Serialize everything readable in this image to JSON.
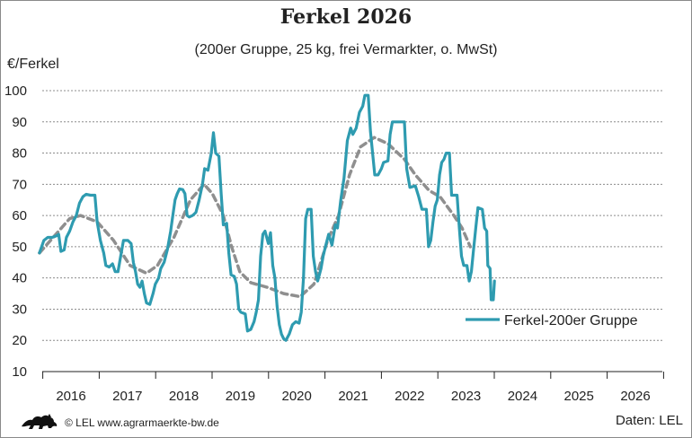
{
  "chart_data": {
    "type": "line",
    "title": "Ferkel 2026",
    "subtitle": "(200er Gruppe, 25 kg, frei Vermarkter, o. MwSt)",
    "ylabel": "€/Ferkel",
    "ylim": [
      10,
      100
    ],
    "yticks": [
      10,
      20,
      30,
      40,
      50,
      60,
      70,
      80,
      90,
      100
    ],
    "xticks": [
      "2016",
      "2017",
      "2018",
      "2019",
      "2020",
      "2021",
      "2022",
      "2023",
      "2024",
      "2025",
      "2026"
    ],
    "xlim": [
      2015.5,
      2026.8
    ],
    "grid": "horizontal dashed",
    "legend_position": "bottom-right",
    "series": [
      {
        "name": "Ferkel-200er Gruppe",
        "color": "#2e9bb0",
        "style": "solid",
        "points": [
          [
            2015.45,
            48
          ],
          [
            2015.53,
            52
          ],
          [
            2015.6,
            53
          ],
          [
            2015.68,
            53
          ],
          [
            2015.76,
            53.5
          ],
          [
            2015.8,
            54
          ],
          [
            2015.84,
            48.5
          ],
          [
            2015.9,
            49
          ],
          [
            2015.94,
            53
          ],
          [
            2016.0,
            55
          ],
          [
            2016.06,
            58
          ],
          [
            2016.12,
            60
          ],
          [
            2016.18,
            64
          ],
          [
            2016.24,
            66
          ],
          [
            2016.3,
            66.8
          ],
          [
            2016.38,
            66.5
          ],
          [
            2016.46,
            66.5
          ],
          [
            2016.5,
            58
          ],
          [
            2016.56,
            52
          ],
          [
            2016.62,
            48
          ],
          [
            2016.66,
            44
          ],
          [
            2016.72,
            43.5
          ],
          [
            2016.78,
            44.5
          ],
          [
            2016.83,
            42
          ],
          [
            2016.88,
            42
          ],
          [
            2016.93,
            47
          ],
          [
            2016.98,
            52
          ],
          [
            2017.06,
            52
          ],
          [
            2017.12,
            51
          ],
          [
            2017.16,
            45
          ],
          [
            2017.2,
            42
          ],
          [
            2017.24,
            38
          ],
          [
            2017.28,
            37
          ],
          [
            2017.32,
            39
          ],
          [
            2017.36,
            35
          ],
          [
            2017.4,
            32
          ],
          [
            2017.46,
            31.5
          ],
          [
            2017.52,
            35
          ],
          [
            2017.56,
            38
          ],
          [
            2017.62,
            40
          ],
          [
            2017.66,
            43
          ],
          [
            2017.72,
            45
          ],
          [
            2017.78,
            49
          ],
          [
            2017.84,
            55
          ],
          [
            2017.88,
            60
          ],
          [
            2017.92,
            65
          ],
          [
            2017.96,
            67
          ],
          [
            2018.0,
            68.5
          ],
          [
            2018.06,
            68.3
          ],
          [
            2018.1,
            67
          ],
          [
            2018.14,
            60
          ],
          [
            2018.18,
            59.5
          ],
          [
            2018.24,
            60
          ],
          [
            2018.3,
            61
          ],
          [
            2018.36,
            65
          ],
          [
            2018.42,
            70
          ],
          [
            2018.46,
            75
          ],
          [
            2018.52,
            74.5
          ],
          [
            2018.58,
            80
          ],
          [
            2018.62,
            86.5
          ],
          [
            2018.66,
            80
          ],
          [
            2018.72,
            79
          ],
          [
            2018.76,
            67
          ],
          [
            2018.8,
            57
          ],
          [
            2018.86,
            57.5
          ],
          [
            2018.9,
            48
          ],
          [
            2018.94,
            41
          ],
          [
            2019.0,
            40.5
          ],
          [
            2019.04,
            38
          ],
          [
            2019.08,
            30
          ],
          [
            2019.12,
            29
          ],
          [
            2019.2,
            28.5
          ],
          [
            2019.24,
            23
          ],
          [
            2019.3,
            23.5
          ],
          [
            2019.36,
            26
          ],
          [
            2019.4,
            29
          ],
          [
            2019.44,
            33
          ],
          [
            2019.48,
            47
          ],
          [
            2019.52,
            54
          ],
          [
            2019.56,
            55
          ],
          [
            2019.62,
            51
          ],
          [
            2019.66,
            54.5
          ],
          [
            2019.7,
            44
          ],
          [
            2019.74,
            40
          ],
          [
            2019.78,
            31
          ],
          [
            2019.82,
            25
          ],
          [
            2019.86,
            22
          ],
          [
            2019.9,
            20.5
          ],
          [
            2019.94,
            20
          ],
          [
            2020.0,
            22
          ],
          [
            2020.06,
            25
          ],
          [
            2020.12,
            26
          ],
          [
            2020.18,
            25.5
          ],
          [
            2020.22,
            29
          ],
          [
            2020.26,
            40
          ],
          [
            2020.3,
            59
          ],
          [
            2020.34,
            62
          ],
          [
            2020.4,
            62
          ],
          [
            2020.44,
            47
          ],
          [
            2020.48,
            42
          ],
          [
            2020.52,
            39
          ],
          [
            2020.58,
            43
          ],
          [
            2020.62,
            47
          ],
          [
            2020.66,
            50
          ],
          [
            2020.72,
            54
          ],
          [
            2020.78,
            50.5
          ],
          [
            2020.84,
            57
          ],
          [
            2020.88,
            56
          ],
          [
            2020.94,
            65
          ],
          [
            2021.0,
            72
          ],
          [
            2021.06,
            84
          ],
          [
            2021.12,
            88
          ],
          [
            2021.16,
            86
          ],
          [
            2021.22,
            88
          ],
          [
            2021.28,
            93
          ],
          [
            2021.34,
            95
          ],
          [
            2021.38,
            98.5
          ],
          [
            2021.44,
            98.5
          ],
          [
            2021.48,
            87
          ],
          [
            2021.52,
            80
          ],
          [
            2021.56,
            73
          ],
          [
            2021.62,
            73
          ],
          [
            2021.68,
            75
          ],
          [
            2021.72,
            77
          ],
          [
            2021.8,
            77.5
          ],
          [
            2021.84,
            86
          ],
          [
            2021.88,
            90
          ],
          [
            2021.94,
            90
          ],
          [
            2022.02,
            90
          ],
          [
            2022.1,
            90
          ],
          [
            2022.14,
            75
          ],
          [
            2022.2,
            69
          ],
          [
            2022.3,
            69.5
          ],
          [
            2022.36,
            66
          ],
          [
            2022.42,
            62
          ],
          [
            2022.5,
            62
          ],
          [
            2022.54,
            50
          ],
          [
            2022.58,
            52
          ],
          [
            2022.62,
            58
          ],
          [
            2022.66,
            63
          ],
          [
            2022.7,
            65
          ],
          [
            2022.74,
            73
          ],
          [
            2022.78,
            77
          ],
          [
            2022.82,
            78
          ],
          [
            2022.86,
            80
          ],
          [
            2022.92,
            80
          ],
          [
            2022.96,
            66.5
          ],
          [
            2023.06,
            66.5
          ],
          [
            2023.1,
            56
          ],
          [
            2023.14,
            47
          ],
          [
            2023.18,
            44
          ],
          [
            2023.24,
            44
          ],
          [
            2023.28,
            39
          ],
          [
            2023.32,
            42
          ],
          [
            2023.36,
            49
          ],
          [
            2023.4,
            56
          ],
          [
            2023.44,
            62.5
          ],
          [
            2023.52,
            62
          ],
          [
            2023.56,
            56
          ],
          [
            2023.6,
            55
          ],
          [
            2023.62,
            44
          ],
          [
            2023.66,
            43
          ],
          [
            2023.68,
            33
          ],
          [
            2023.72,
            33
          ],
          [
            2023.74,
            39
          ]
        ]
      },
      {
        "name": "",
        "color": "#8f8f8f",
        "style": "dashed",
        "points": [
          [
            2015.45,
            48
          ],
          [
            2015.7,
            53
          ],
          [
            2016.0,
            59
          ],
          [
            2016.2,
            60
          ],
          [
            2016.5,
            58
          ],
          [
            2016.8,
            52
          ],
          [
            2017.1,
            44
          ],
          [
            2017.4,
            41.5
          ],
          [
            2017.6,
            44
          ],
          [
            2017.9,
            53
          ],
          [
            2018.2,
            65
          ],
          [
            2018.45,
            70
          ],
          [
            2018.6,
            67
          ],
          [
            2018.8,
            60
          ],
          [
            2018.95,
            50
          ],
          [
            2019.1,
            42
          ],
          [
            2019.3,
            38.5
          ],
          [
            2019.6,
            37
          ],
          [
            2019.9,
            35
          ],
          [
            2020.2,
            34
          ],
          [
            2020.45,
            38
          ],
          [
            2020.7,
            52
          ],
          [
            2020.9,
            60
          ],
          [
            2021.1,
            73
          ],
          [
            2021.3,
            82
          ],
          [
            2021.55,
            85
          ],
          [
            2021.8,
            83
          ],
          [
            2022.1,
            78
          ],
          [
            2022.3,
            73
          ],
          [
            2022.55,
            68
          ],
          [
            2022.75,
            66
          ],
          [
            2023.0,
            60
          ],
          [
            2023.15,
            56
          ],
          [
            2023.3,
            50
          ]
        ]
      }
    ]
  },
  "footer": {
    "source_text": "© LEL www.agrarmaerkte-bw.de",
    "data_credit": "Daten: LEL"
  },
  "logo": {
    "icon": "lion-heraldic-icon",
    "color": "#111111"
  }
}
